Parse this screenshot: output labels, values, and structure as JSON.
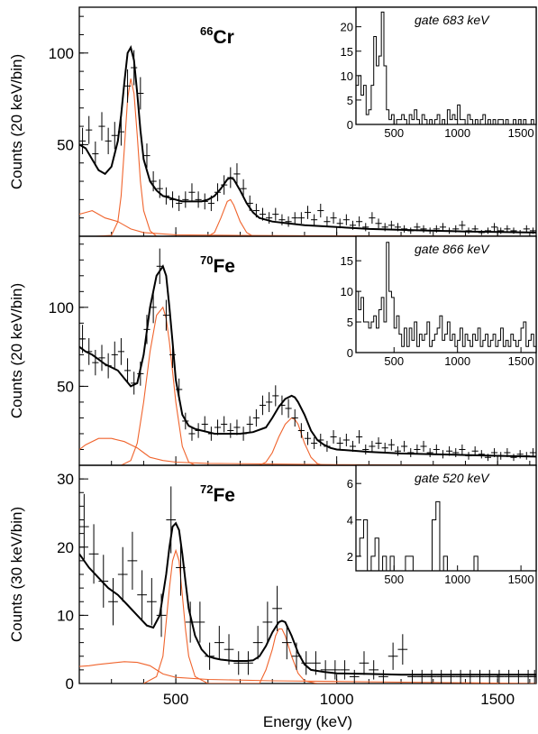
{
  "figure": {
    "xlabel": "Energy (keV)",
    "x_ticks": [
      "500",
      "1000",
      "1500"
    ]
  },
  "chart_data": [
    {
      "type": "scatter",
      "nucleus_mass": "66",
      "nucleus_symbol": "Cr",
      "ylabel": "Counts (20 keV/bin)",
      "xlim": [
        200,
        1620
      ],
      "ylim": [
        0,
        125
      ],
      "y_ticks": [
        50,
        100
      ],
      "x_ticks": [
        500,
        1000,
        1500
      ],
      "data_points": {
        "x": [
          210,
          230,
          250,
          270,
          290,
          310,
          330,
          350,
          370,
          390,
          410,
          430,
          450,
          470,
          490,
          510,
          530,
          550,
          570,
          590,
          610,
          630,
          650,
          670,
          690,
          710,
          730,
          750,
          770,
          790,
          810,
          830,
          850,
          870,
          890,
          910,
          930,
          950,
          970,
          990,
          1010,
          1030,
          1050,
          1070,
          1090,
          1110,
          1130,
          1150,
          1170,
          1190,
          1210,
          1230,
          1250,
          1270,
          1290,
          1310,
          1330,
          1350,
          1370,
          1390,
          1410,
          1430,
          1450,
          1470,
          1490,
          1510,
          1530,
          1550,
          1570,
          1590,
          1610
        ],
        "y": [
          52,
          58,
          45,
          60,
          52,
          55,
          57,
          82,
          92,
          78,
          44,
          30,
          26,
          22,
          20,
          18,
          20,
          24,
          20,
          19,
          18,
          24,
          28,
          32,
          34,
          26,
          18,
          14,
          12,
          10,
          12,
          9,
          8,
          10,
          10,
          13,
          9,
          14,
          8,
          10,
          7,
          9,
          6,
          8,
          5,
          10,
          7,
          5,
          6,
          5,
          4,
          3,
          5,
          4,
          3,
          4,
          5,
          3,
          4,
          6,
          3,
          4,
          2,
          3,
          5,
          3,
          4,
          3,
          2,
          4,
          3
        ]
      },
      "fit_total": {
        "x": [
          200,
          220,
          240,
          260,
          280,
          300,
          320,
          330,
          340,
          350,
          360,
          370,
          380,
          390,
          400,
          420,
          440,
          460,
          480,
          500,
          520,
          540,
          560,
          580,
          600,
          620,
          640,
          660,
          670,
          680,
          700,
          720,
          740,
          760,
          780,
          800,
          850,
          900,
          1000,
          1100,
          1200,
          1300,
          1400,
          1500,
          1620
        ],
        "y": [
          50,
          48,
          42,
          36,
          34,
          38,
          52,
          66,
          84,
          100,
          103,
          96,
          78,
          58,
          42,
          30,
          25,
          22,
          21,
          20,
          19,
          19,
          19,
          19,
          20,
          22,
          26,
          31,
          32,
          31,
          25,
          18,
          13,
          10,
          9,
          8,
          7,
          6,
          5,
          4,
          3.5,
          3,
          2.6,
          2.3,
          2
        ]
      },
      "fit_peaks": {
        "x": [
          250,
          300,
          320,
          330,
          340,
          350,
          360,
          370,
          380,
          390,
          400,
          420,
          440,
          500,
          560,
          600,
          620,
          640,
          660,
          670,
          680,
          700,
          720,
          740,
          800,
          900,
          1000
        ],
        "y": [
          0,
          0.5,
          8,
          22,
          48,
          75,
          86,
          78,
          55,
          30,
          14,
          3,
          0,
          0,
          0,
          0,
          2,
          10,
          19,
          20,
          17,
          8,
          2,
          0,
          0,
          0,
          0
        ]
      },
      "fit_background": {
        "x": [
          200,
          220,
          240,
          260,
          280,
          300,
          320,
          340,
          360,
          400,
          500,
          700,
          900,
          1100,
          1300,
          1500,
          1620
        ],
        "y": [
          12,
          13,
          14,
          12,
          10,
          9,
          8,
          6,
          4,
          2,
          0.8,
          0.5,
          0.3,
          0.2,
          0.1,
          0.05,
          0
        ]
      },
      "inset": {
        "label": "gate 683 keV",
        "xlim": [
          200,
          1620
        ],
        "ylim": [
          0,
          24
        ],
        "x_ticks": [
          500,
          1000,
          1500
        ],
        "y_ticks": [
          0,
          5,
          10,
          15,
          20
        ],
        "bin_width": 20,
        "bin_start": 200,
        "counts": [
          8,
          10,
          6,
          8,
          2,
          3,
          8,
          18,
          12,
          14,
          23,
          12,
          3,
          1,
          2,
          0,
          1,
          1,
          2,
          1,
          0,
          2,
          1,
          3,
          1,
          0,
          2,
          1,
          0,
          1,
          0,
          1,
          2,
          0,
          1,
          0,
          3,
          1,
          2,
          1,
          4,
          1,
          1,
          0,
          2,
          1,
          0,
          1,
          0,
          1,
          2,
          0,
          1,
          0,
          1,
          0,
          1,
          1,
          0,
          1,
          0,
          0,
          1,
          0,
          1,
          0,
          1,
          0,
          0,
          1,
          0
        ]
      }
    },
    {
      "type": "scatter",
      "nucleus_mass": "70",
      "nucleus_symbol": "Fe",
      "ylabel": "Counts (20 keV/bin)",
      "xlim": [
        200,
        1620
      ],
      "ylim": [
        0,
        145
      ],
      "y_ticks": [
        50,
        100
      ],
      "x_ticks": [
        500,
        1000,
        1500
      ],
      "data_points": {
        "x": [
          210,
          230,
          250,
          270,
          290,
          310,
          330,
          350,
          370,
          390,
          410,
          430,
          450,
          470,
          490,
          510,
          530,
          550,
          570,
          590,
          610,
          630,
          650,
          670,
          690,
          710,
          730,
          750,
          770,
          790,
          810,
          830,
          850,
          870,
          890,
          910,
          930,
          950,
          970,
          990,
          1010,
          1030,
          1050,
          1070,
          1090,
          1110,
          1130,
          1150,
          1170,
          1190,
          1210,
          1230,
          1250,
          1270,
          1290,
          1310,
          1330,
          1350,
          1370,
          1390,
          1410,
          1430,
          1450,
          1470,
          1490,
          1510,
          1530,
          1550,
          1570,
          1590,
          1610
        ],
        "y": [
          80,
          72,
          65,
          68,
          63,
          70,
          72,
          60,
          52,
          58,
          86,
          100,
          126,
          95,
          70,
          48,
          28,
          20,
          22,
          26,
          20,
          24,
          26,
          22,
          24,
          20,
          26,
          30,
          38,
          40,
          44,
          38,
          36,
          30,
          22,
          17,
          14,
          16,
          12,
          18,
          14,
          16,
          12,
          18,
          10,
          12,
          14,
          11,
          13,
          9,
          12,
          8,
          10,
          12,
          8,
          10,
          7,
          9,
          8,
          10,
          6,
          9,
          7,
          5,
          8,
          6,
          8,
          5,
          7,
          6,
          8
        ]
      },
      "fit_total": {
        "x": [
          200,
          220,
          240,
          260,
          280,
          300,
          320,
          340,
          360,
          380,
          400,
          420,
          440,
          460,
          470,
          480,
          490,
          500,
          520,
          540,
          560,
          580,
          600,
          620,
          640,
          660,
          680,
          700,
          740,
          780,
          800,
          820,
          840,
          860,
          870,
          880,
          900,
          920,
          940,
          960,
          980,
          1000,
          1100,
          1200,
          1300,
          1400,
          1500,
          1620
        ],
        "y": [
          75,
          72,
          70,
          67,
          64,
          62,
          60,
          55,
          50,
          52,
          70,
          100,
          120,
          126,
          120,
          100,
          78,
          54,
          32,
          25,
          23,
          22,
          21,
          20,
          20,
          20,
          20,
          20,
          21,
          24,
          30,
          37,
          42,
          44,
          43,
          40,
          32,
          22,
          16,
          13,
          11,
          10,
          8.5,
          7.5,
          7,
          6.5,
          6,
          5.5
        ]
      },
      "fit_peaks": {
        "x": [
          330,
          360,
          380,
          400,
          420,
          440,
          460,
          470,
          480,
          500,
          520,
          540,
          560,
          600,
          700,
          760,
          780,
          800,
          820,
          840,
          860,
          870,
          880,
          900,
          920,
          940,
          960,
          1000
        ],
        "y": [
          0,
          3,
          14,
          40,
          72,
          95,
          100,
          93,
          78,
          40,
          12,
          2,
          0,
          0,
          0,
          0,
          2,
          8,
          18,
          26,
          30,
          29,
          26,
          14,
          5,
          1,
          0,
          0
        ]
      },
      "fit_background": {
        "x": [
          200,
          220,
          260,
          300,
          340,
          360,
          380,
          400,
          420,
          460,
          500,
          600,
          800,
          1000,
          1200,
          1400,
          1620
        ],
        "y": [
          10,
          13,
          17,
          17,
          15,
          13,
          11,
          8,
          5,
          3,
          2,
          1.2,
          0.8,
          0.4,
          0.2,
          0.1,
          0
        ]
      },
      "inset": {
        "label": "gate 866 keV",
        "xlim": [
          200,
          1620
        ],
        "ylim": [
          0,
          19
        ],
        "x_ticks": [
          500,
          1000,
          1500
        ],
        "y_ticks": [
          0,
          5,
          10,
          15
        ],
        "bin_width": 20,
        "bin_start": 200,
        "counts": [
          10,
          7,
          9,
          5,
          5,
          4,
          5,
          6,
          4,
          7,
          9,
          5,
          18,
          10,
          9,
          4,
          6,
          3,
          1,
          4,
          1,
          4,
          2,
          5,
          1,
          3,
          2,
          3,
          5,
          1,
          2,
          3,
          4,
          6,
          2,
          3,
          5,
          2,
          3,
          1,
          2,
          4,
          1,
          3,
          2,
          1,
          3,
          2,
          4,
          1,
          2,
          3,
          1,
          2,
          3,
          1,
          2,
          4,
          1,
          2,
          1,
          3,
          2,
          1,
          2,
          4,
          5,
          1,
          2,
          3,
          1
        ]
      }
    },
    {
      "type": "scatter",
      "nucleus_mass": "72",
      "nucleus_symbol": "Fe",
      "ylabel": "Counts (30 keV/bin)",
      "xlim": [
        200,
        1620
      ],
      "ylim": [
        0,
        32
      ],
      "y_ticks": [
        0,
        10,
        20,
        30
      ],
      "x_ticks": [
        500,
        1000,
        1500
      ],
      "data_points": {
        "x": [
          215,
          245,
          275,
          305,
          335,
          365,
          395,
          425,
          455,
          485,
          515,
          545,
          575,
          605,
          635,
          665,
          695,
          725,
          755,
          785,
          815,
          845,
          875,
          905,
          935,
          965,
          995,
          1025,
          1055,
          1085,
          1115,
          1145,
          1175,
          1205,
          1235,
          1265,
          1295,
          1325,
          1355,
          1385,
          1415,
          1445,
          1475,
          1505,
          1535,
          1565,
          1595,
          1615
        ],
        "y": [
          23,
          19,
          15,
          12,
          16,
          18,
          13,
          12,
          10,
          24,
          17,
          9,
          9,
          4,
          6,
          5,
          3,
          3,
          6,
          9,
          11,
          6,
          4,
          3,
          3,
          2,
          2,
          2,
          1,
          3,
          2,
          1,
          4,
          5,
          1,
          1,
          1,
          1,
          1,
          1,
          1,
          1,
          1,
          1,
          1,
          1,
          1,
          1
        ]
      },
      "fit_total": {
        "x": [
          200,
          230,
          260,
          290,
          320,
          350,
          380,
          410,
          430,
          450,
          470,
          480,
          490,
          500,
          510,
          520,
          530,
          540,
          560,
          580,
          600,
          620,
          640,
          660,
          680,
          700,
          720,
          740,
          760,
          780,
          800,
          820,
          830,
          840,
          860,
          880,
          900,
          920,
          960,
          1000,
          1100,
          1200,
          1300,
          1400,
          1500,
          1620
        ],
        "y": [
          19,
          17,
          15.5,
          14,
          13,
          11.5,
          10,
          8.5,
          8.2,
          10,
          16,
          20,
          23,
          23.5,
          22.5,
          19,
          15,
          11,
          7,
          5,
          4,
          3.7,
          3.5,
          3.4,
          3.3,
          3.3,
          3.3,
          3.4,
          4,
          5.5,
          7.5,
          9,
          9.2,
          9,
          7,
          4.5,
          2.8,
          2,
          1.7,
          1.5,
          1.4,
          1.3,
          1.3,
          1.3,
          1.3,
          1.3
        ]
      },
      "fit_peaks": {
        "x": [
          400,
          440,
          460,
          470,
          480,
          490,
          500,
          510,
          520,
          530,
          540,
          560,
          600,
          700,
          760,
          780,
          800,
          810,
          820,
          830,
          840,
          860,
          880,
          900,
          940,
          1000
        ],
        "y": [
          0,
          1,
          4,
          9,
          14,
          18,
          19.5,
          18,
          13,
          8,
          4,
          1,
          0,
          0,
          0,
          2,
          5,
          7,
          8,
          8,
          7,
          4,
          1.5,
          0.4,
          0,
          0
        ]
      },
      "fit_background": {
        "x": [
          200,
          230,
          260,
          300,
          340,
          380,
          420,
          440,
          460,
          500,
          600,
          800,
          1000,
          1200,
          1400,
          1620
        ],
        "y": [
          2.5,
          2.6,
          2.8,
          3,
          3.2,
          3.1,
          2.6,
          2,
          1.4,
          0.9,
          0.6,
          0.4,
          0.3,
          0.2,
          0.1,
          0
        ]
      },
      "inset": {
        "label": "gate 520 keV",
        "xlim": [
          200,
          1620
        ],
        "ylim": [
          1.2,
          7
        ],
        "x_ticks": [
          500,
          1000,
          1500
        ],
        "y_ticks": [
          2,
          4,
          6
        ],
        "bin_width": 30,
        "bin_start": 200,
        "counts": [
          2,
          3,
          4,
          1,
          2,
          3,
          1,
          2,
          1,
          2,
          1,
          1,
          1,
          2,
          2,
          1,
          1,
          1,
          1,
          1,
          4,
          5,
          1,
          2,
          1,
          1,
          1,
          1,
          1,
          1,
          1,
          2,
          1,
          1,
          1,
          1,
          1,
          1,
          1,
          1,
          1,
          1,
          1,
          1,
          1,
          1,
          1
        ]
      }
    }
  ]
}
